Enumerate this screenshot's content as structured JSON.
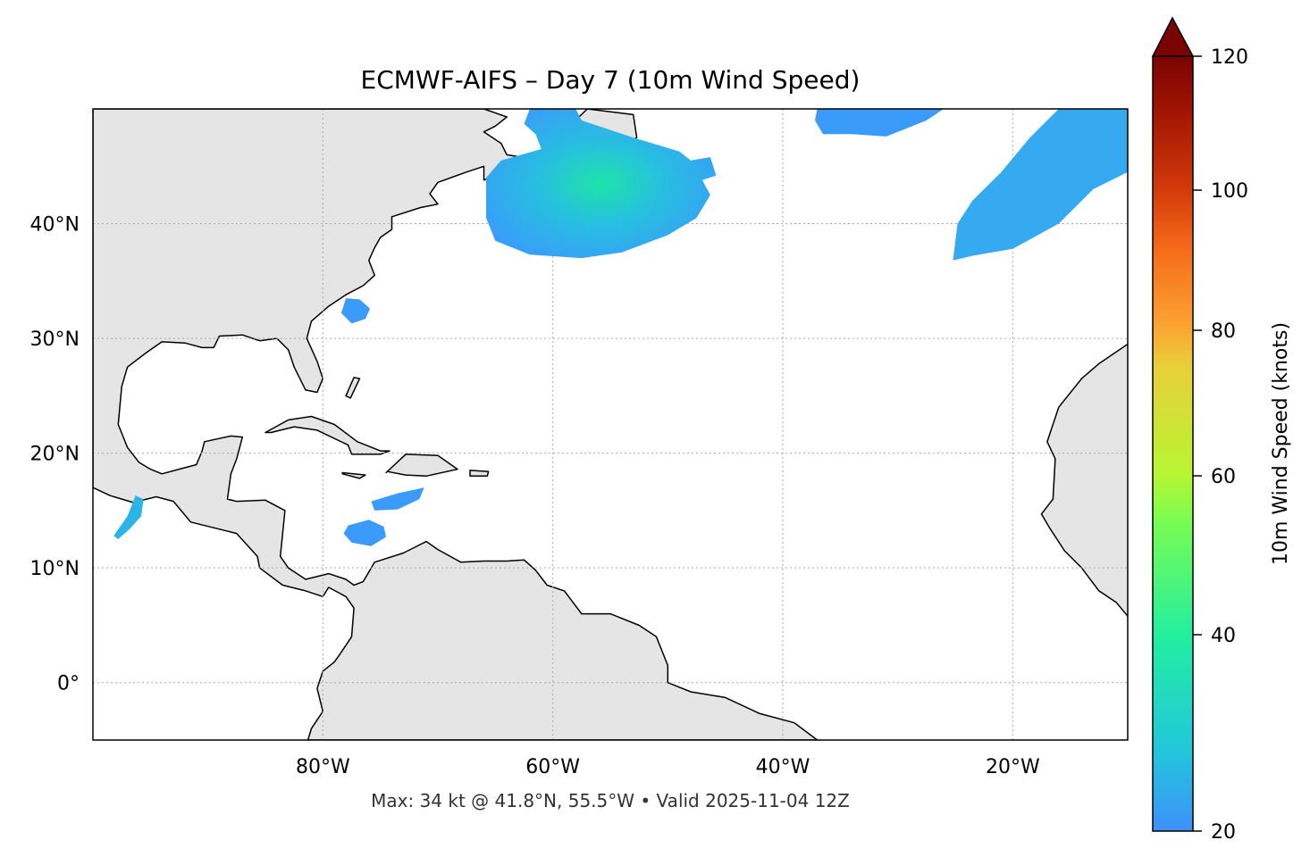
{
  "title": "ECMWF-AIFS – Day 7 (10m Wind Speed)",
  "footer": "Max: 34 kt @ 41.8°N, 55.5°W • Valid 2025-11-04 12Z",
  "map": {
    "projection": "PlateCarree",
    "extent_lon": [
      -100,
      -10
    ],
    "extent_lat": [
      -5,
      50
    ],
    "gridlines": "dotted",
    "land_color": "#e5e5e5",
    "ocean_color": "#ffffff",
    "lon_ticks": [
      {
        "value": -80,
        "label": "80°W"
      },
      {
        "value": -60,
        "label": "60°W"
      },
      {
        "value": -40,
        "label": "40°W"
      },
      {
        "value": -20,
        "label": "20°W"
      }
    ],
    "lat_ticks": [
      {
        "value": 40,
        "label": "40°N"
      },
      {
        "value": 30,
        "label": "30°N"
      },
      {
        "value": 20,
        "label": "20°N"
      },
      {
        "value": 10,
        "label": "10°N"
      },
      {
        "value": 0,
        "label": "0°"
      }
    ],
    "max_point": {
      "speed_kt": 34,
      "lat": 41.8,
      "lon": -55.5
    }
  },
  "colorbar": {
    "label": "10m Wind Speed (knots)",
    "colormap": "turbo",
    "range": [
      20,
      120
    ],
    "extend": "max",
    "ticks": [
      {
        "value": 120,
        "label": "120"
      },
      {
        "value": 100,
        "label": "100"
      },
      {
        "value": 80,
        "label": "80"
      },
      {
        "value": 60,
        "label": "60"
      },
      {
        "value": 40,
        "label": "40"
      },
      {
        "value": 20,
        "label": "20"
      }
    ],
    "colors": [
      "#3f8ffa",
      "#22c5dc",
      "#22eea0",
      "#7afc52",
      "#c4f132",
      "#f3c33a",
      "#fb8f28",
      "#de4a0d",
      "#a81403",
      "#7a0403"
    ]
  }
}
